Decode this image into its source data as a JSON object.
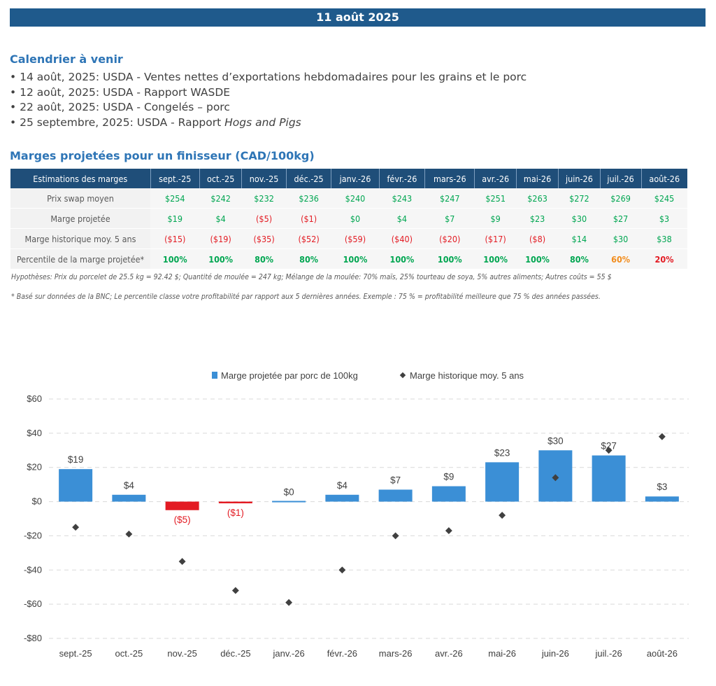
{
  "banner": "11 août 2025",
  "calendar": {
    "title": "Calendrier à venir",
    "items": [
      {
        "text": "14 août, 2025: USDA - Ventes nettes d’exportations hebdomadaires pour les grains et le porc"
      },
      {
        "text": "12 août, 2025: USDA - Rapport WASDE"
      },
      {
        "text": "22 août, 2025: USDA - Congelés – porc"
      },
      {
        "text": "25 septembre, 2025: USDA - Rapport ",
        "italic": "Hogs and Pigs"
      }
    ]
  },
  "margins_table": {
    "title": "Marges projetées pour un finisseur (CAD/100kg)",
    "header_label": "Estimations des marges",
    "months": [
      "sept.-25",
      "oct.-25",
      "nov.-25",
      "déc.-25",
      "janv.-26",
      "févr.-26",
      "mars-26",
      "avr.-26",
      "mai-26",
      "juin-26",
      "juil.-26",
      "août-26"
    ],
    "rows": [
      {
        "label": "Prix swap moyen",
        "kind": "plain",
        "values": [
          "$254",
          "$242",
          "$232",
          "$236",
          "$240",
          "$243",
          "$247",
          "$251",
          "$263",
          "$272",
          "$269",
          "$245"
        ]
      },
      {
        "label": "Marge projetée",
        "kind": "signed",
        "values": [
          "$19",
          "$4",
          "($5)",
          "($1)",
          "$0",
          "$4",
          "$7",
          "$9",
          "$23",
          "$30",
          "$27",
          "$3"
        ]
      },
      {
        "label": "Marge historique moy. 5 ans",
        "kind": "signed",
        "values": [
          "($15)",
          "($19)",
          "($35)",
          "($52)",
          "($59)",
          "($40)",
          "($20)",
          "($17)",
          "($8)",
          "$14",
          "$30",
          "$38"
        ]
      },
      {
        "label": "Percentile de la marge projetée*",
        "kind": "pct",
        "values": [
          "100%",
          "100%",
          "80%",
          "80%",
          "100%",
          "100%",
          "100%",
          "100%",
          "100%",
          "80%",
          "60%",
          "20%"
        ]
      }
    ],
    "pct_colors": [
      "#00a651",
      "#00a651",
      "#00a651",
      "#00a651",
      "#00a651",
      "#00a651",
      "#00a651",
      "#00a651",
      "#00a651",
      "#00a651",
      "#f28c1c",
      "#e31b23"
    ]
  },
  "notes": {
    "hypotheses": "Hypothèses: Prix du porcelet de 25.5 kg = 92.42 $; Quantité de moulée = 247 kg; Mélange de la moulée: 70% maïs, 25% tourteau de soya, 5% autres aliments; Autres coûts = 55 $",
    "footnote": "* Basé sur données de la BNC; Le percentile classe votre profitabilité par rapport aux 5 dernières années. Exemple : 75 % = profitabilité meilleure que 75 % des années passées."
  },
  "chart_data": {
    "type": "bar",
    "categories": [
      "sept.-25",
      "oct.-25",
      "nov.-25",
      "déc.-25",
      "janv.-26",
      "févr.-26",
      "mars-26",
      "avr.-26",
      "mai-26",
      "juin-26",
      "juil.-26",
      "août-26"
    ],
    "series": [
      {
        "name": "Marge projetée par porc de 100kg",
        "type": "bar",
        "values": [
          19,
          4,
          -5,
          -1,
          0,
          4,
          7,
          9,
          23,
          30,
          27,
          3
        ],
        "labels": [
          "$19",
          "$4",
          "($5)",
          "($1)",
          "$0",
          "$4",
          "$7",
          "$9",
          "$23",
          "$30",
          "$27",
          "$3"
        ]
      },
      {
        "name": "Marge historique moy. 5 ans",
        "type": "scatter",
        "values": [
          -15,
          -19,
          -35,
          -52,
          -59,
          -40,
          -20,
          -17,
          -8,
          14,
          30,
          38
        ]
      }
    ],
    "ylim": [
      -80,
      60
    ],
    "yticks": [
      60,
      40,
      20,
      0,
      -20,
      -40,
      -60,
      -80
    ],
    "ytick_labels": [
      "$60",
      "$40",
      "$20",
      "$0",
      "-$20",
      "-$40",
      "-$60",
      "-$80"
    ],
    "legend": "top-center",
    "grid": true,
    "colors": {
      "bar_positive": "#3b8fd6",
      "bar_negative": "#e31b23",
      "marker": "#404040",
      "label_negative": "#e31b23",
      "label_positive": "#404040"
    }
  }
}
